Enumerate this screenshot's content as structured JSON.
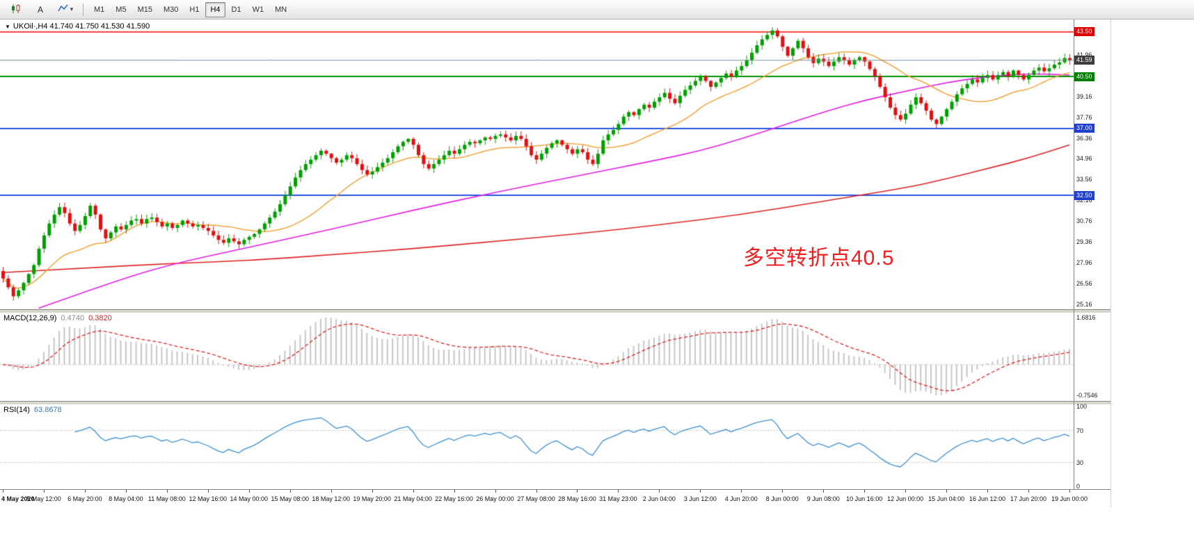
{
  "toolbar": {
    "text_tool_label": "A",
    "indicator_caret": "▾",
    "timeframes": [
      "M1",
      "M5",
      "M15",
      "M30",
      "H1",
      "H4",
      "D1",
      "W1",
      "MN"
    ],
    "selected_timeframe": "H4"
  },
  "main_chart": {
    "symbol_marker": "▼",
    "header": "UKOil·,H4 41.740 41.750 41.530 41.590",
    "annotation": {
      "text": "多空转折点40.5",
      "color": "#f21d1d"
    }
  },
  "chart_data": [
    {
      "type": "candlestick",
      "title": "UKOil H4",
      "ylim": [
        24.83,
        44.34
      ],
      "y_ticks": [
        41.96,
        39.16,
        37.76,
        36.36,
        34.96,
        33.56,
        32.16,
        30.76,
        29.36,
        27.96,
        26.56,
        25.16
      ],
      "x_labels": [
        "4 May 2020",
        "5 May 12:00",
        "6 May 20:00",
        "8 May 04:00",
        "11 May 08:00",
        "12 May 16:00",
        "14 May 00:00",
        "15 May 08:00",
        "18 May 12:00",
        "19 May 20:00",
        "21 May 04:00",
        "22 May 16:00",
        "26 May 00:00",
        "27 May 08:00",
        "28 May 16:00",
        "31 May 23:00",
        "2 Jun 04:00",
        "3 Jun 12:00",
        "4 Jun 20:00",
        "8 Jun 00:00",
        "9 Jun 08:00",
        "10 Jun 16:00",
        "12 Jun 00:00",
        "15 Jun 04:00",
        "16 Jun 12:00",
        "17 Jun 20:00",
        "19 Jun 00:00"
      ],
      "bars_per_label": 8,
      "first_open": 27.4,
      "up_color": "#00a000",
      "down_color": "#e01010",
      "closes": [
        26.9,
        26.3,
        25.7,
        26.1,
        26.6,
        27.2,
        27.8,
        28.9,
        29.8,
        30.6,
        31.2,
        31.7,
        31.3,
        30.6,
        30.1,
        30.5,
        31.1,
        31.8,
        31.2,
        30.2,
        29.6,
        30.0,
        30.4,
        30.2,
        30.5,
        30.8,
        30.9,
        30.6,
        30.9,
        31.0,
        30.7,
        30.4,
        30.6,
        30.3,
        30.5,
        30.8,
        30.6,
        30.4,
        30.5,
        30.3,
        30.1,
        29.8,
        29.5,
        29.3,
        29.6,
        29.4,
        29.2,
        29.5,
        29.7,
        29.9,
        30.2,
        30.6,
        31.0,
        31.4,
        31.9,
        32.5,
        33.1,
        33.7,
        34.2,
        34.6,
        34.9,
        35.2,
        35.5,
        35.3,
        35.0,
        34.7,
        34.9,
        35.2,
        35.0,
        34.6,
        34.2,
        33.9,
        34.1,
        34.4,
        34.7,
        35.0,
        35.4,
        35.8,
        36.1,
        36.3,
        35.9,
        35.2,
        34.6,
        34.3,
        34.6,
        34.9,
        35.2,
        35.5,
        35.3,
        35.6,
        35.9,
        36.1,
        36.0,
        36.2,
        36.4,
        36.3,
        36.5,
        36.6,
        36.4,
        36.2,
        36.5,
        36.3,
        35.8,
        35.2,
        34.9,
        35.3,
        35.7,
        36.0,
        36.2,
        35.9,
        35.6,
        35.3,
        35.6,
        35.4,
        34.9,
        34.6,
        35.3,
        36.2,
        36.6,
        36.9,
        37.3,
        37.8,
        38.1,
        37.9,
        38.3,
        38.6,
        38.4,
        38.8,
        39.1,
        39.4,
        39.0,
        38.7,
        39.2,
        39.6,
        39.9,
        40.2,
        40.5,
        40.2,
        39.8,
        40.1,
        40.4,
        40.7,
        40.5,
        40.9,
        41.2,
        41.6,
        42.1,
        42.6,
        43.0,
        43.3,
        43.6,
        43.2,
        42.5,
        41.9,
        42.4,
        42.9,
        42.4,
        41.8,
        41.4,
        41.7,
        41.5,
        41.2,
        41.5,
        41.8,
        41.6,
        41.3,
        41.6,
        41.8,
        41.5,
        41.0,
        40.5,
        39.8,
        39.1,
        38.4,
        37.9,
        37.6,
        38.0,
        38.6,
        39.1,
        38.7,
        38.2,
        37.6,
        37.3,
        37.8,
        38.3,
        38.8,
        39.3,
        39.7,
        40.0,
        40.3,
        40.1,
        40.4,
        40.6,
        40.3,
        40.6,
        40.8,
        40.5,
        40.9,
        40.6,
        40.3,
        40.6,
        40.9,
        41.1,
        40.85,
        41.05,
        41.3,
        41.45,
        41.74,
        41.59
      ],
      "hlines": [
        {
          "price": 43.5,
          "label": "43.50",
          "color": "#ff0000",
          "width": 1.6,
          "label_bg": "#e00000"
        },
        {
          "price": 40.5,
          "label": "40.50",
          "color": "#009000",
          "width": 2,
          "label_bg": "#008000"
        },
        {
          "price": 37.0,
          "label": "37.00",
          "color": "#2255e6",
          "width": 2,
          "label_bg": "#2040cc"
        },
        {
          "price": 32.5,
          "label": "32.50",
          "color": "#2255e6",
          "width": 2,
          "label_bg": "#2040cc"
        }
      ],
      "current_price": {
        "value": 41.59,
        "label": "41.59",
        "color": "#7a8a94",
        "label_bg": "#3d3d3d"
      },
      "ma_lines": [
        {
          "name": "ma-fast",
          "color": "#f2a33c",
          "method": "sma",
          "period": 21
        },
        {
          "name": "ma-mid",
          "color": "#e31ee3",
          "anchors": [
            [
              7,
              24.9
            ],
            [
              20,
              26.5
            ],
            [
              32,
              27.8
            ],
            [
              48,
              29.0
            ],
            [
              64,
              30.2
            ],
            [
              80,
              31.5
            ],
            [
              96,
              32.7
            ],
            [
              112,
              33.8
            ],
            [
              128,
              34.9
            ],
            [
              136,
              35.5
            ],
            [
              144,
              36.3
            ],
            [
              152,
              37.2
            ],
            [
              160,
              38.1
            ],
            [
              168,
              38.9
            ],
            [
              176,
              39.5
            ],
            [
              184,
              40.1
            ],
            [
              192,
              40.5
            ],
            [
              200,
              40.7
            ],
            [
              208,
              40.6
            ]
          ]
        },
        {
          "name": "ma-slow",
          "color": "#e02222",
          "anchors": [
            [
              0,
              27.3
            ],
            [
              16,
              27.6
            ],
            [
              32,
              27.9
            ],
            [
              48,
              28.1
            ],
            [
              64,
              28.5
            ],
            [
              80,
              28.9
            ],
            [
              96,
              29.4
            ],
            [
              112,
              29.9
            ],
            [
              128,
              30.5
            ],
            [
              144,
              31.2
            ],
            [
              160,
              32.1
            ],
            [
              176,
              33.0
            ],
            [
              184,
              33.6
            ],
            [
              192,
              34.3
            ],
            [
              200,
              35.0
            ],
            [
              208,
              35.9
            ]
          ]
        }
      ]
    },
    {
      "type": "bar",
      "name": "MACD",
      "title": "MACD(12,26,9)",
      "value_main": "0.4740",
      "value_signal": "0.3820",
      "params": [
        12,
        26,
        9
      ],
      "axis_top_label": "1.6816",
      "axis_bottom_label": "-0.7546",
      "histogram_color": "#c6c6c6",
      "signal_color": "#e02020",
      "source": "computed from chart_data[0].closes"
    },
    {
      "type": "line",
      "name": "RSI",
      "title": "RSI(14)",
      "value": "63.8678",
      "period": 14,
      "levels": [
        70,
        30
      ],
      "axis_labels": [
        100,
        70,
        30,
        0
      ],
      "line_color": "#3c8fd0",
      "ylim": [
        0,
        100
      ],
      "source": "computed from chart_data[0].closes"
    }
  ]
}
